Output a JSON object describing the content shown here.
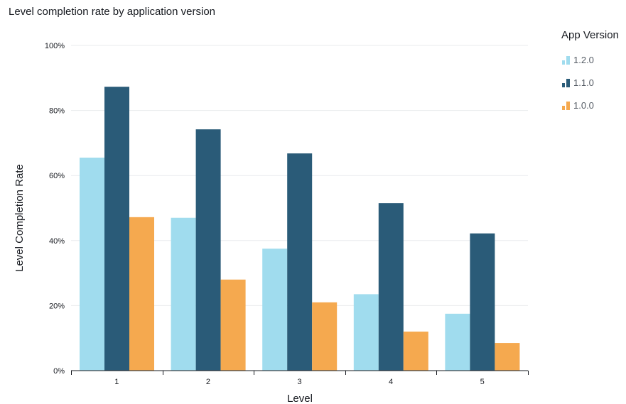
{
  "title": "Level completion rate by application version",
  "legend": {
    "title": "App Version"
  },
  "chart_data": {
    "type": "bar",
    "title": "Level completion rate by application version",
    "xlabel": "Level",
    "ylabel": "Level Completion Rate",
    "categories": [
      "1",
      "2",
      "3",
      "4",
      "5"
    ],
    "series": [
      {
        "name": "1.2.0",
        "color": "#a0dcee",
        "values": [
          65.5,
          47,
          37.5,
          23.5,
          17.5
        ]
      },
      {
        "name": "1.1.0",
        "color": "#2a5b78",
        "values": [
          87.3,
          74.2,
          66.8,
          51.5,
          42.2
        ]
      },
      {
        "name": "1.0.0",
        "color": "#f5a94f",
        "values": [
          47.2,
          28,
          21,
          12,
          8.5
        ]
      }
    ],
    "ylim": [
      0,
      100
    ],
    "yticks": [
      "0%",
      "20%",
      "40%",
      "60%",
      "80%",
      "100%"
    ],
    "grid": true,
    "legend_position": "right"
  }
}
